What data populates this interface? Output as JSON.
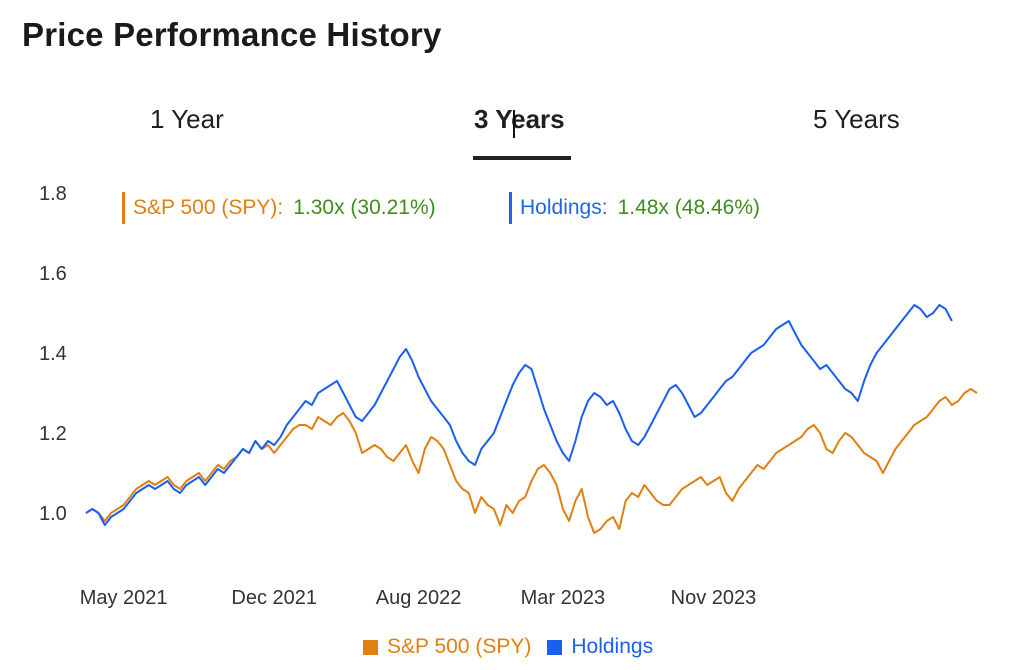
{
  "title": "Price Performance History",
  "tabs": [
    {
      "label": "1 Year",
      "active": false
    },
    {
      "label": "3 Years",
      "active": true
    },
    {
      "label": "5 Years",
      "active": false
    }
  ],
  "summary": [
    {
      "label": "S&P 500 (SPY):",
      "value": "1.30x (30.21%)",
      "color": "#e07f12"
    },
    {
      "label": "Holdings:",
      "value": "1.48x (48.46%)",
      "color": "#2167e0"
    }
  ],
  "legend": [
    {
      "label": "S&P 500 (SPY)",
      "color": "#e07f12"
    },
    {
      "label": "Holdings",
      "color": "#1a5ff0"
    }
  ],
  "chart_data": {
    "type": "line",
    "ylim": [
      0.9,
      1.8
    ],
    "y_ticks": [
      "1.0",
      "1.2",
      "1.4",
      "1.6",
      "1.8"
    ],
    "y_tick_values": [
      1.0,
      1.2,
      1.4,
      1.6,
      1.8
    ],
    "x_tick_labels": [
      "May 2021",
      "Dec 2021",
      "Aug 2022",
      "Mar 2023",
      "Nov 2023"
    ],
    "x_tick_index": [
      6,
      30,
      53,
      76,
      100
    ],
    "grid": false,
    "legend_position": "bottom",
    "series": [
      {
        "name": "S&P 500 (SPY)",
        "color": "#e07f12",
        "values": [
          1.0,
          1.01,
          1.0,
          0.98,
          1.0,
          1.01,
          1.02,
          1.04,
          1.06,
          1.07,
          1.08,
          1.07,
          1.08,
          1.09,
          1.07,
          1.06,
          1.08,
          1.09,
          1.1,
          1.08,
          1.1,
          1.12,
          1.11,
          1.13,
          1.14,
          1.16,
          1.15,
          1.18,
          1.16,
          1.17,
          1.15,
          1.17,
          1.19,
          1.21,
          1.22,
          1.22,
          1.21,
          1.24,
          1.23,
          1.22,
          1.24,
          1.25,
          1.23,
          1.2,
          1.15,
          1.16,
          1.17,
          1.16,
          1.14,
          1.13,
          1.15,
          1.17,
          1.13,
          1.1,
          1.16,
          1.19,
          1.18,
          1.16,
          1.12,
          1.08,
          1.06,
          1.05,
          1.0,
          1.04,
          1.02,
          1.01,
          0.97,
          1.02,
          1.0,
          1.03,
          1.04,
          1.08,
          1.11,
          1.12,
          1.1,
          1.07,
          1.01,
          0.98,
          1.03,
          1.06,
          0.99,
          0.95,
          0.96,
          0.98,
          0.99,
          0.96,
          1.03,
          1.05,
          1.04,
          1.07,
          1.05,
          1.03,
          1.02,
          1.02,
          1.04,
          1.06,
          1.07,
          1.08,
          1.09,
          1.07,
          1.08,
          1.09,
          1.05,
          1.03,
          1.06,
          1.08,
          1.1,
          1.12,
          1.11,
          1.13,
          1.15,
          1.16,
          1.17,
          1.18,
          1.19,
          1.21,
          1.22,
          1.2,
          1.16,
          1.15,
          1.18,
          1.2,
          1.19,
          1.17,
          1.15,
          1.14,
          1.13,
          1.1,
          1.13,
          1.16,
          1.18,
          1.2,
          1.22,
          1.23,
          1.24,
          1.26,
          1.28,
          1.29,
          1.27,
          1.28,
          1.3,
          1.31,
          1.3
        ]
      },
      {
        "name": "Holdings",
        "color": "#1a5ff0",
        "values": [
          1.0,
          1.01,
          1.0,
          0.97,
          0.99,
          1.0,
          1.01,
          1.03,
          1.05,
          1.06,
          1.07,
          1.06,
          1.07,
          1.08,
          1.06,
          1.05,
          1.07,
          1.08,
          1.09,
          1.07,
          1.09,
          1.11,
          1.1,
          1.12,
          1.14,
          1.16,
          1.15,
          1.18,
          1.16,
          1.18,
          1.17,
          1.19,
          1.22,
          1.24,
          1.26,
          1.28,
          1.27,
          1.3,
          1.31,
          1.32,
          1.33,
          1.3,
          1.27,
          1.24,
          1.23,
          1.25,
          1.27,
          1.3,
          1.33,
          1.36,
          1.39,
          1.41,
          1.38,
          1.34,
          1.31,
          1.28,
          1.26,
          1.24,
          1.22,
          1.18,
          1.15,
          1.13,
          1.12,
          1.16,
          1.18,
          1.2,
          1.24,
          1.28,
          1.32,
          1.35,
          1.37,
          1.36,
          1.31,
          1.26,
          1.22,
          1.18,
          1.15,
          1.13,
          1.18,
          1.24,
          1.28,
          1.3,
          1.29,
          1.27,
          1.28,
          1.25,
          1.21,
          1.18,
          1.17,
          1.19,
          1.22,
          1.25,
          1.28,
          1.31,
          1.32,
          1.3,
          1.27,
          1.24,
          1.25,
          1.27,
          1.29,
          1.31,
          1.33,
          1.34,
          1.36,
          1.38,
          1.4,
          1.41,
          1.42,
          1.44,
          1.46,
          1.47,
          1.48,
          1.45,
          1.42,
          1.4,
          1.38,
          1.36,
          1.37,
          1.35,
          1.33,
          1.31,
          1.3,
          1.28,
          1.33,
          1.37,
          1.4,
          1.42,
          1.44,
          1.46,
          1.48,
          1.5,
          1.52,
          1.51,
          1.49,
          1.5,
          1.52,
          1.51,
          1.48
        ]
      }
    ]
  }
}
